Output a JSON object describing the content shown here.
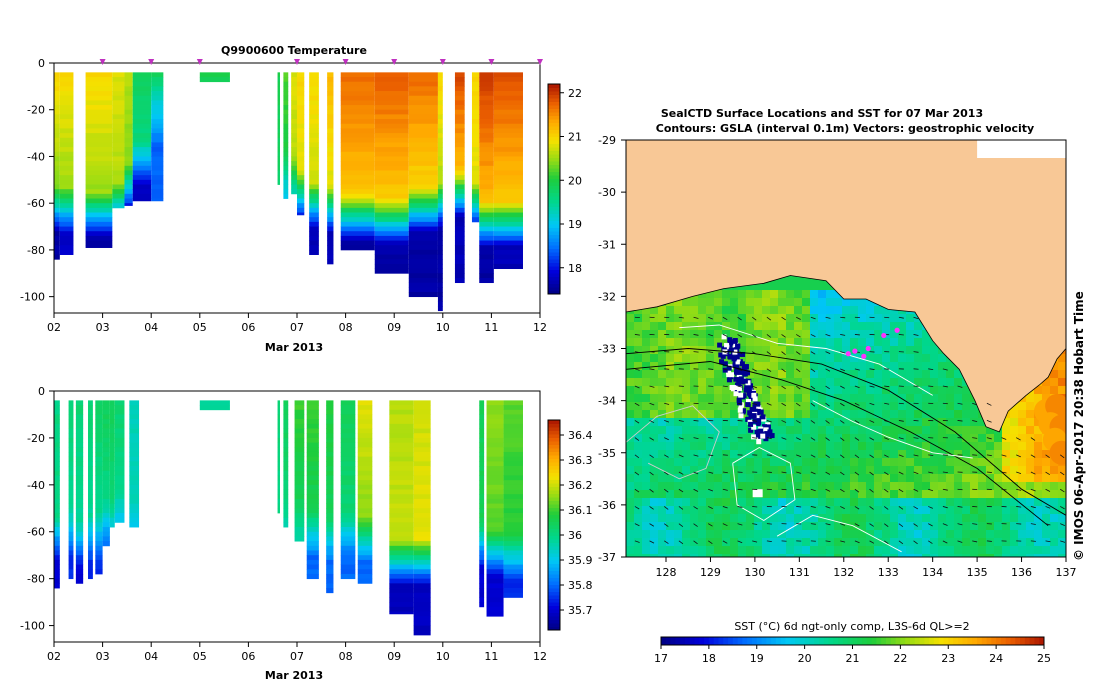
{
  "chart_data": [
    {
      "type": "heatmap",
      "title": "Q9900600  Temperature",
      "xlabel": "Mar 2013",
      "xlim": [
        2,
        12
      ],
      "x_ticks": [
        "02",
        "03",
        "04",
        "05",
        "06",
        "07",
        "08",
        "09",
        "10",
        "11",
        "12"
      ],
      "ylim": [
        -107,
        0
      ],
      "y_ticks": [
        0,
        -20,
        -40,
        -60,
        -80,
        -100
      ],
      "colorbar": {
        "range": [
          17.4,
          22.2
        ],
        "ticks": [
          "22",
          "21",
          "20",
          "19",
          "18"
        ],
        "tick_values": [
          22,
          21,
          20,
          19,
          18
        ]
      },
      "profile_markers_x": [
        3.0,
        4.0,
        5.0,
        7.0,
        8.0,
        9.0,
        10.0,
        11.0,
        12.0
      ],
      "profiles": [
        {
          "x0": 2.0,
          "x1": 2.12,
          "surface": 21.0,
          "mid": 20.4,
          "bottom": 17.6,
          "thermocline": -62,
          "max_depth": -84
        },
        {
          "x0": 2.12,
          "x1": 2.4,
          "surface": 21.0,
          "mid": 20.5,
          "bottom": 17.8,
          "thermocline": -62,
          "max_depth": -82
        },
        {
          "x0": 2.65,
          "x1": 3.2,
          "surface": 21.0,
          "mid": 20.5,
          "bottom": 17.6,
          "thermocline": -64,
          "max_depth": -79
        },
        {
          "x0": 3.2,
          "x1": 3.45,
          "surface": 20.8,
          "mid": 20.6,
          "bottom": 17.7,
          "thermocline": -60,
          "max_depth": -62
        },
        {
          "x0": 3.45,
          "x1": 3.62,
          "surface": 20.6,
          "mid": 20.4,
          "bottom": 17.8,
          "thermocline": -52,
          "max_depth": -61
        },
        {
          "x0": 3.62,
          "x1": 4.0,
          "surface": 19.8,
          "mid": 19.6,
          "bottom": 17.8,
          "thermocline": -42,
          "max_depth": -59
        },
        {
          "x0": 4.0,
          "x1": 4.25,
          "surface": 19.8,
          "mid": 19.2,
          "bottom": 18.4,
          "thermocline": -25,
          "max_depth": -59
        },
        {
          "x0": 5.0,
          "x1": 5.62,
          "surface": 19.9,
          "mid": 19.9,
          "bottom": 19.9,
          "thermocline": -8,
          "max_depth": -8
        },
        {
          "x0": 6.6,
          "x1": 6.65,
          "surface": 19.9,
          "mid": 19.8,
          "bottom": 19.7,
          "thermocline": -50,
          "max_depth": -52
        },
        {
          "x0": 6.72,
          "x1": 6.82,
          "surface": 20.2,
          "mid": 20.0,
          "bottom": 19.0,
          "thermocline": -45,
          "max_depth": -58
        },
        {
          "x0": 6.88,
          "x1": 7.02,
          "surface": 20.8,
          "mid": 20.6,
          "bottom": 19.0,
          "thermocline": -48,
          "max_depth": -56
        },
        {
          "x0": 7.0,
          "x1": 7.15,
          "surface": 21.0,
          "mid": 20.8,
          "bottom": 18.0,
          "thermocline": -55,
          "max_depth": -65
        },
        {
          "x0": 7.25,
          "x1": 7.45,
          "surface": 21.0,
          "mid": 20.7,
          "bottom": 17.7,
          "thermocline": -60,
          "max_depth": -82
        },
        {
          "x0": 7.62,
          "x1": 7.75,
          "surface": 21.2,
          "mid": 20.8,
          "bottom": 17.7,
          "thermocline": -62,
          "max_depth": -86
        },
        {
          "x0": 7.9,
          "x1": 8.6,
          "surface": 21.7,
          "mid": 21.1,
          "bottom": 17.6,
          "thermocline": -65,
          "max_depth": -80
        },
        {
          "x0": 8.6,
          "x1": 9.3,
          "surface": 21.8,
          "mid": 21.1,
          "bottom": 17.6,
          "thermocline": -67,
          "max_depth": -90
        },
        {
          "x0": 9.3,
          "x1": 9.9,
          "surface": 21.7,
          "mid": 21.0,
          "bottom": 17.6,
          "thermocline": -62,
          "max_depth": -100
        },
        {
          "x0": 9.9,
          "x1": 10.0,
          "surface": 21.0,
          "mid": 20.6,
          "bottom": 17.6,
          "thermocline": -60,
          "max_depth": -106
        },
        {
          "x0": 10.25,
          "x1": 10.45,
          "surface": 21.9,
          "mid": 21.2,
          "bottom": 17.7,
          "thermocline": -55,
          "max_depth": -94
        },
        {
          "x0": 10.6,
          "x1": 10.75,
          "surface": 21.0,
          "mid": 20.8,
          "bottom": 17.7,
          "thermocline": -60,
          "max_depth": -68
        },
        {
          "x0": 10.75,
          "x1": 11.05,
          "surface": 22.0,
          "mid": 21.2,
          "bottom": 17.6,
          "thermocline": -68,
          "max_depth": -94
        },
        {
          "x0": 11.05,
          "x1": 11.65,
          "surface": 21.9,
          "mid": 21.1,
          "bottom": 17.7,
          "thermocline": -68,
          "max_depth": -88
        }
      ]
    },
    {
      "type": "heatmap",
      "title": "",
      "xlabel": "Mar 2013",
      "xlim": [
        2,
        12
      ],
      "x_ticks": [
        "02",
        "03",
        "04",
        "05",
        "06",
        "07",
        "08",
        "09",
        "10",
        "11",
        "12"
      ],
      "ylim": [
        -107,
        0
      ],
      "y_ticks": [
        0,
        -20,
        -40,
        -60,
        -80,
        -100
      ],
      "colorbar": {
        "range": [
          35.62,
          36.46
        ],
        "ticks": [
          "36.4",
          "36.3",
          "36.2",
          "36.1",
          "36",
          "35.9",
          "35.8",
          "35.7"
        ],
        "tick_values": [
          36.4,
          36.3,
          36.2,
          36.1,
          36.0,
          35.9,
          35.8,
          35.7
        ]
      },
      "profiles": [
        {
          "x0": 2.0,
          "x1": 2.12,
          "surface": 36.0,
          "mid": 36.0,
          "bottom": 35.7,
          "thermocline": -62,
          "max_depth": -84
        },
        {
          "x0": 2.3,
          "x1": 2.4,
          "surface": 36.02,
          "mid": 35.98,
          "bottom": 35.75,
          "thermocline": -60,
          "max_depth": -80
        },
        {
          "x0": 2.45,
          "x1": 2.6,
          "surface": 36.02,
          "mid": 35.98,
          "bottom": 35.7,
          "thermocline": -65,
          "max_depth": -82
        },
        {
          "x0": 2.7,
          "x1": 2.8,
          "surface": 36.02,
          "mid": 35.98,
          "bottom": 35.75,
          "thermocline": -62,
          "max_depth": -80
        },
        {
          "x0": 2.85,
          "x1": 3.0,
          "surface": 36.04,
          "mid": 35.98,
          "bottom": 35.75,
          "thermocline": -62,
          "max_depth": -78
        },
        {
          "x0": 3.0,
          "x1": 3.15,
          "surface": 36.05,
          "mid": 36.0,
          "bottom": 35.8,
          "thermocline": -55,
          "max_depth": -66
        },
        {
          "x0": 3.15,
          "x1": 3.25,
          "surface": 36.05,
          "mid": 36.02,
          "bottom": 35.85,
          "thermocline": -55,
          "max_depth": -58
        },
        {
          "x0": 3.25,
          "x1": 3.45,
          "surface": 36.02,
          "mid": 36.0,
          "bottom": 35.85,
          "thermocline": -50,
          "max_depth": -56
        },
        {
          "x0": 3.55,
          "x1": 3.75,
          "surface": 35.95,
          "mid": 35.95,
          "bottom": 35.85,
          "thermocline": -55,
          "max_depth": -58
        },
        {
          "x0": 5.0,
          "x1": 5.62,
          "surface": 35.98,
          "mid": 35.98,
          "bottom": 35.98,
          "thermocline": -8,
          "max_depth": -8
        },
        {
          "x0": 6.6,
          "x1": 6.65,
          "surface": 36.02,
          "mid": 36.0,
          "bottom": 36.0,
          "thermocline": -50,
          "max_depth": -52
        },
        {
          "x0": 6.72,
          "x1": 6.82,
          "surface": 36.05,
          "mid": 36.02,
          "bottom": 35.95,
          "thermocline": -50,
          "max_depth": -58
        },
        {
          "x0": 6.95,
          "x1": 7.15,
          "surface": 36.1,
          "mid": 36.05,
          "bottom": 35.95,
          "thermocline": -55,
          "max_depth": -64
        },
        {
          "x0": 7.2,
          "x1": 7.45,
          "surface": 36.1,
          "mid": 36.05,
          "bottom": 35.8,
          "thermocline": -60,
          "max_depth": -80
        },
        {
          "x0": 7.6,
          "x1": 7.75,
          "surface": 36.08,
          "mid": 36.05,
          "bottom": 35.8,
          "thermocline": -62,
          "max_depth": -86
        },
        {
          "x0": 7.9,
          "x1": 8.2,
          "surface": 36.05,
          "mid": 36.02,
          "bottom": 35.8,
          "thermocline": -60,
          "max_depth": -80
        },
        {
          "x0": 8.25,
          "x1": 8.55,
          "surface": 36.22,
          "mid": 36.15,
          "bottom": 35.8,
          "thermocline": -62,
          "max_depth": -82
        },
        {
          "x0": 8.9,
          "x1": 9.4,
          "surface": 36.18,
          "mid": 36.2,
          "bottom": 35.68,
          "thermocline": -72,
          "max_depth": -95
        },
        {
          "x0": 9.4,
          "x1": 9.75,
          "surface": 36.2,
          "mid": 36.22,
          "bottom": 35.68,
          "thermocline": -72,
          "max_depth": -104
        },
        {
          "x0": 10.75,
          "x1": 10.85,
          "surface": 36.05,
          "mid": 36.05,
          "bottom": 35.7,
          "thermocline": -65,
          "max_depth": -92
        },
        {
          "x0": 10.9,
          "x1": 11.25,
          "surface": 36.15,
          "mid": 36.12,
          "bottom": 35.7,
          "thermocline": -68,
          "max_depth": -96
        },
        {
          "x0": 11.25,
          "x1": 11.65,
          "surface": 36.12,
          "mid": 36.08,
          "bottom": 35.75,
          "thermocline": -70,
          "max_depth": -88
        }
      ]
    },
    {
      "type": "heatmap",
      "title": "SealCTD Surface Locations and SST for 07 Mar 2013",
      "subtitle": "Contours: GSLA (interval 0.1m) Vectors: geostrophic velocity",
      "xlim": [
        127.1,
        137
      ],
      "ylim": [
        -37,
        -29
      ],
      "x_ticks": [
        128,
        129,
        130,
        131,
        132,
        133,
        134,
        135,
        136,
        137
      ],
      "y_ticks": [
        -29,
        -30,
        -31,
        -32,
        -33,
        -34,
        -35,
        -36,
        -37
      ],
      "land_color": "#f8c896",
      "colorbar": {
        "label": "SST (°C) 6d ngt-only comp, L3S-6d QL>=2",
        "range": [
          17,
          25
        ],
        "ticks": [
          "17",
          "18",
          "19",
          "20",
          "21",
          "22",
          "23",
          "24",
          "25"
        ],
        "tick_values": [
          17,
          18,
          19,
          20,
          21,
          22,
          23,
          24,
          25
        ]
      },
      "seal_locations": [
        {
          "lon": 132.1,
          "lat": -33.1
        },
        {
          "lon": 132.25,
          "lat": -33.05
        },
        {
          "lon": 132.45,
          "lat": -33.15
        },
        {
          "lon": 132.55,
          "lat": -33.0
        },
        {
          "lon": 132.9,
          "lat": -32.75
        },
        {
          "lon": 133.2,
          "lat": -32.65
        }
      ],
      "marker_color": "#ff33ff",
      "credit": "© IMOS 06-Apr-2017 20:38 Hobart Time"
    }
  ]
}
